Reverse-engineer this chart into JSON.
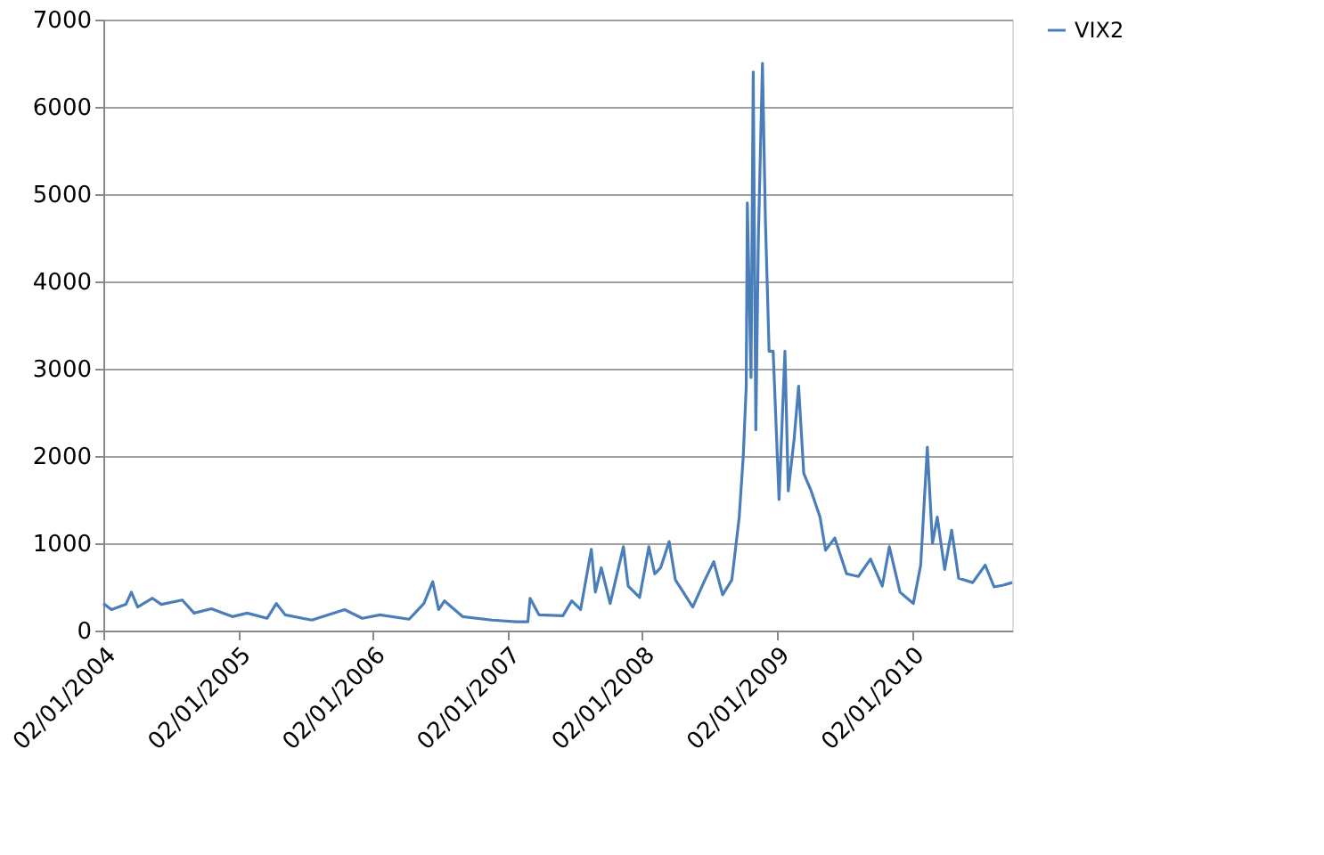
{
  "chart_data": {
    "type": "line",
    "xlabel": null,
    "x": [
      "2004-01-02",
      "2004-01-24",
      "2004-03-03",
      "2004-03-18",
      "2004-04-04",
      "2004-05-14",
      "2004-06-07",
      "2004-08-03",
      "2004-09-04",
      "2004-10-21",
      "2004-12-17",
      "2005-01-26",
      "2005-03-21",
      "2005-04-15",
      "2005-05-09",
      "2005-07-20",
      "2005-10-17",
      "2005-12-04",
      "2006-01-21",
      "2006-04-10",
      "2006-05-20",
      "2006-06-13",
      "2006-06-29",
      "2006-07-15",
      "2006-09-02",
      "2006-11-21",
      "2007-01-25",
      "2007-02-26",
      "2007-03-04",
      "2007-03-28",
      "2007-06-01",
      "2007-06-25",
      "2007-07-19",
      "2007-08-17",
      "2007-08-28",
      "2007-09-13",
      "2007-10-07",
      "2007-11-12",
      "2007-11-25",
      "2007-12-26",
      "2008-01-20",
      "2008-02-05",
      "2008-02-21",
      "2008-03-15",
      "2008-04-01",
      "2008-05-18",
      "2008-06-20",
      "2008-07-14",
      "2008-08-07",
      "2008-09-01",
      "2008-09-21",
      "2008-10-02",
      "2008-10-10",
      "2008-10-13",
      "2008-10-23",
      "2008-10-29",
      "2008-11-05",
      "2008-11-12",
      "2008-11-23",
      "2008-12-01",
      "2008-12-11",
      "2008-12-22",
      "2009-01-07",
      "2009-01-23",
      "2009-02-01",
      "2009-02-17",
      "2009-03-01",
      "2009-03-15",
      "2009-04-04",
      "2009-04-28",
      "2009-05-13",
      "2009-06-07",
      "2009-07-09",
      "2009-08-10",
      "2009-09-12",
      "2009-10-14",
      "2009-11-02",
      "2009-12-01",
      "2010-01-06",
      "2010-01-26",
      "2010-02-13",
      "2010-02-27",
      "2010-03-12",
      "2010-04-01",
      "2010-04-20",
      "2010-05-09",
      "2010-06-16",
      "2010-07-20",
      "2010-08-13",
      "2010-09-07",
      "2010-10-01"
    ],
    "series": [
      {
        "name": "VIX2",
        "color": "#4a7ebb",
        "values": [
          310,
          240,
          300,
          440,
          270,
          370,
          300,
          350,
          200,
          250,
          160,
          200,
          140,
          310,
          180,
          120,
          240,
          140,
          180,
          130,
          310,
          560,
          240,
          340,
          160,
          120,
          100,
          100,
          370,
          180,
          170,
          340,
          240,
          930,
          440,
          720,
          310,
          960,
          510,
          380,
          960,
          650,
          720,
          1020,
          580,
          270,
          580,
          790,
          410,
          580,
          1300,
          2000,
          2800,
          4900,
          2900,
          6400,
          2300,
          4500,
          6500,
          4700,
          3200,
          3200,
          1500,
          3200,
          1600,
          2200,
          2800,
          1800,
          1600,
          1300,
          920,
          1060,
          650,
          620,
          820,
          510,
          960,
          440,
          310,
          750,
          2100,
          1000,
          1300,
          700,
          1150,
          600,
          550,
          750,
          500,
          520,
          550
        ]
      }
    ],
    "xlim": [
      "2004-01-02",
      "2010-10-01"
    ],
    "xticks": [
      {
        "value": "2004-01-02",
        "label": "02/01/2004"
      },
      {
        "value": "2005-01-02",
        "label": "02/01/2005"
      },
      {
        "value": "2006-01-02",
        "label": "02/01/2006"
      },
      {
        "value": "2007-01-02",
        "label": "02/01/2007"
      },
      {
        "value": "2008-01-02",
        "label": "02/01/2008"
      },
      {
        "value": "2009-01-02",
        "label": "02/01/2009"
      },
      {
        "value": "2010-01-02",
        "label": "02/01/2010"
      }
    ],
    "ylim": [
      0,
      7000
    ],
    "yticks": [
      0,
      1000,
      2000,
      3000,
      4000,
      5000,
      6000,
      7000
    ],
    "grid": "y",
    "legend": "right",
    "marker": "none",
    "line_style": "solid"
  }
}
